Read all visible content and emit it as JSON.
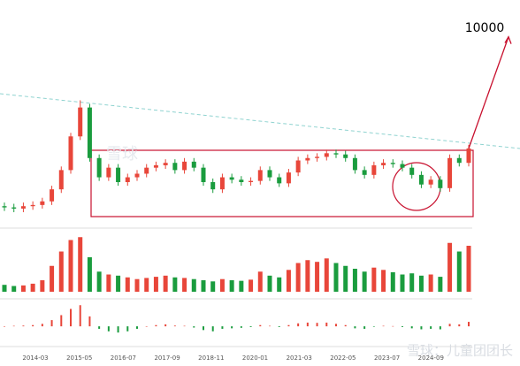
{
  "chart_data": {
    "type": "candlestick",
    "x_labels": [
      "2014-03",
      "2015-05",
      "2016-07",
      "2017-09",
      "2018-11",
      "2020-01",
      "2021-03",
      "2022-05",
      "2023-07",
      "2024-09"
    ],
    "open": [
      2300,
      2250,
      2200,
      2300,
      2350,
      2500,
      3000,
      3800,
      5200,
      6400,
      4300,
      3500,
      3900,
      3300,
      3500,
      3650,
      3900,
      4000,
      4100,
      3800,
      4150,
      3900,
      3300,
      3000,
      3500,
      3400,
      3300,
      3350,
      3800,
      3500,
      3250,
      3700,
      4200,
      4300,
      4350,
      4500,
      4450,
      4300,
      3800,
      3600,
      4000,
      4100,
      4050,
      3900,
      3600,
      3200,
      3400,
      3050,
      4300,
      4100
    ],
    "high": [
      2450,
      2400,
      2450,
      2500,
      2650,
      3150,
      3950,
      5350,
      6700,
      6550,
      4450,
      4050,
      4050,
      3650,
      3800,
      4050,
      4150,
      4250,
      4250,
      4300,
      4300,
      4050,
      3450,
      3650,
      3650,
      3550,
      3500,
      3950,
      3950,
      3650,
      3850,
      4350,
      4450,
      4500,
      4650,
      4650,
      4600,
      4450,
      3950,
      4150,
      4250,
      4250,
      4200,
      4050,
      3750,
      3550,
      3550,
      4450,
      4450,
      4850
    ],
    "low": [
      2100,
      2050,
      2050,
      2150,
      2200,
      2350,
      2850,
      3650,
      5050,
      4150,
      3350,
      3350,
      3150,
      3150,
      3350,
      3500,
      3750,
      3850,
      3650,
      3650,
      3750,
      3150,
      2850,
      2850,
      3250,
      3150,
      3150,
      3200,
      3350,
      3100,
      3100,
      3550,
      4050,
      4150,
      4200,
      4300,
      4150,
      3650,
      3450,
      3450,
      3850,
      3900,
      3750,
      3450,
      3050,
      3050,
      2900,
      2900,
      3950,
      3950
    ],
    "close": [
      2250,
      2200,
      2300,
      2350,
      2500,
      3000,
      3800,
      5200,
      6400,
      4300,
      3500,
      3900,
      3300,
      3500,
      3650,
      3900,
      4000,
      4100,
      3800,
      4150,
      3900,
      3300,
      3000,
      3500,
      3400,
      3300,
      3350,
      3800,
      3500,
      3250,
      3700,
      4200,
      4300,
      4350,
      4500,
      4450,
      4300,
      3800,
      3600,
      4000,
      4100,
      4050,
      3900,
      3600,
      3200,
      3400,
      3050,
      4300,
      4100,
      4700
    ],
    "ylim": [
      1500,
      10500
    ],
    "up_color": "#e8463a",
    "down_color": "#1a9c3e",
    "target": 10000,
    "volume": {
      "values": [
        12,
        10,
        11,
        14,
        20,
        45,
        70,
        90,
        95,
        60,
        35,
        30,
        28,
        25,
        22,
        24,
        26,
        28,
        25,
        24,
        22,
        20,
        18,
        22,
        20,
        19,
        21,
        35,
        28,
        25,
        38,
        50,
        55,
        52,
        58,
        50,
        45,
        40,
        35,
        42,
        38,
        34,
        30,
        32,
        28,
        30,
        26,
        85,
        70,
        80
      ],
      "ylim": [
        0,
        100
      ]
    },
    "macd": {
      "values": [
        0,
        2,
        3,
        5,
        10,
        25,
        45,
        70,
        85,
        40,
        -10,
        -20,
        -25,
        -20,
        -10,
        0,
        5,
        8,
        3,
        2,
        -5,
        -15,
        -20,
        -10,
        -8,
        -6,
        -3,
        5,
        2,
        -3,
        5,
        12,
        15,
        14,
        15,
        10,
        5,
        -8,
        -10,
        -2,
        2,
        1,
        -3,
        -8,
        -12,
        -10,
        -12,
        10,
        8,
        18
      ],
      "ylim": [
        -60,
        100
      ]
    },
    "watermark": {
      "center": "雪球",
      "corner": "雪球：儿童团团长"
    }
  }
}
